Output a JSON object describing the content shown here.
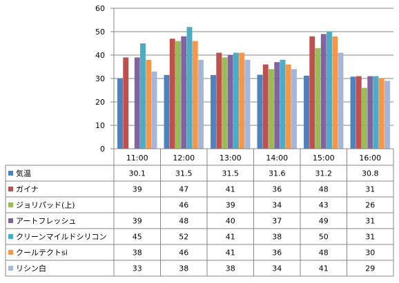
{
  "chart_data": {
    "type": "bar",
    "categories": [
      "11:00",
      "12:00",
      "13:00",
      "14:00",
      "15:00",
      "16:00"
    ],
    "ylim": [
      0,
      60
    ],
    "yticks": [
      0,
      10,
      20,
      30,
      40,
      50,
      60
    ],
    "grid": true,
    "legend": "data-table",
    "series": [
      {
        "name": "気温",
        "color": "#4F81BD",
        "values": [
          30.1,
          31.5,
          31.5,
          31.6,
          31.2,
          30.8
        ]
      },
      {
        "name": "ガイナ",
        "color": "#C0504D",
        "values": [
          39,
          47,
          41,
          36,
          48,
          31
        ]
      },
      {
        "name": "ジョリパッド(上)",
        "color": "#9BBB59",
        "values": [
          null,
          46,
          39,
          34,
          43,
          26
        ]
      },
      {
        "name": "アートフレッシュ",
        "color": "#8064A2",
        "values": [
          39,
          48,
          40,
          37,
          49,
          31
        ]
      },
      {
        "name": "クリーンマイルドシリコン",
        "color": "#4BACC6",
        "values": [
          45,
          52,
          41,
          38,
          50,
          31
        ]
      },
      {
        "name": "クールテクトsi",
        "color": "#F79646",
        "values": [
          38,
          46,
          41,
          36,
          48,
          30
        ]
      },
      {
        "name": "リシン白",
        "color": "#A5B6DB",
        "values": [
          33,
          38,
          38,
          34,
          41,
          29
        ]
      }
    ]
  }
}
